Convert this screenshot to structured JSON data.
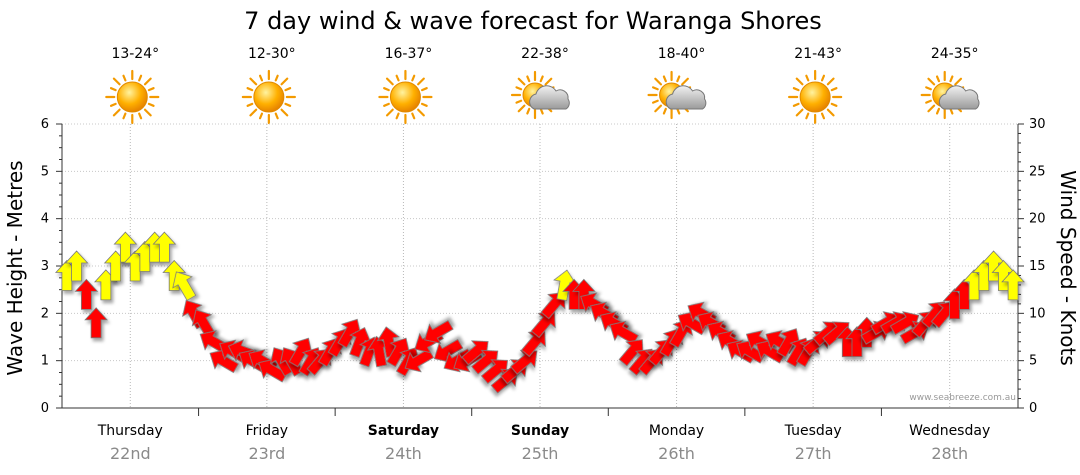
{
  "chart_data": {
    "type": "line",
    "title": "7 day wind & wave forecast for Waranga Shores",
    "ylabel_left": "Wave Height - Metres",
    "ylabel_right": "Wind Speed - Knots",
    "ylim_left": [
      0,
      6
    ],
    "ylim_right": [
      0,
      30
    ],
    "yticks_left": [
      "0",
      "1",
      "2",
      "3",
      "4",
      "5",
      "6"
    ],
    "yticks_right": [
      "0",
      "5",
      "10",
      "15",
      "20",
      "25",
      "30"
    ],
    "watermark": "www.seabreeze.com.au",
    "days": [
      {
        "label": "Thursday",
        "date": "22nd",
        "temp": "13-24°",
        "weather": "sunny-icon",
        "bold": false
      },
      {
        "label": "Friday",
        "date": "23rd",
        "temp": "12-30°",
        "weather": "sunny-icon",
        "bold": false
      },
      {
        "label": "Saturday",
        "date": "24th",
        "temp": "16-37°",
        "weather": "sunny-icon",
        "bold": true
      },
      {
        "label": "Sunday",
        "date": "25th",
        "temp": "22-38°",
        "weather": "partly-cloudy-icon",
        "bold": true
      },
      {
        "label": "Monday",
        "date": "26th",
        "temp": "18-40°",
        "weather": "partly-cloudy-icon",
        "bold": false
      },
      {
        "label": "Tuesday",
        "date": "27th",
        "temp": "21-43°",
        "weather": "sunny-icon",
        "bold": false
      },
      {
        "label": "Wednesday",
        "date": "28th",
        "temp": "24-35°",
        "weather": "partly-cloudy-icon",
        "bold": false
      }
    ],
    "wind_series": {
      "name": "Wind Speed",
      "unit": "knots",
      "hours_per_point": 3,
      "values": [
        14,
        15,
        12,
        9,
        13,
        15,
        17,
        15,
        16,
        17,
        17,
        14,
        13,
        10,
        9,
        7,
        5,
        6,
        6,
        5,
        5,
        4,
        5,
        5,
        6,
        5,
        5,
        6,
        7,
        8,
        7,
        6,
        6,
        7,
        6,
        5,
        5,
        7,
        8,
        6,
        5,
        5,
        6,
        5,
        4,
        3,
        4,
        5,
        7,
        9,
        11,
        13,
        12,
        12,
        11,
        10,
        9,
        8,
        6,
        5,
        5,
        6,
        7,
        8,
        9,
        10,
        9,
        8,
        7,
        6,
        6,
        7,
        6,
        7,
        7,
        6,
        6,
        7,
        8,
        8,
        7,
        7,
        8,
        8,
        9,
        9,
        9,
        8,
        9,
        10,
        10,
        11,
        12,
        13,
        14,
        15,
        14,
        13
      ],
      "direction_deg": [
        0,
        0,
        0,
        0,
        0,
        0,
        0,
        0,
        0,
        0,
        0,
        0,
        330,
        330,
        330,
        300,
        300,
        300,
        290,
        300,
        300,
        300,
        330,
        330,
        30,
        30,
        40,
        30,
        30,
        30,
        20,
        20,
        350,
        350,
        30,
        30,
        240,
        240,
        240,
        240,
        240,
        240,
        50,
        50,
        50,
        50,
        50,
        50,
        40,
        40,
        40,
        10,
        0,
        0,
        300,
        300,
        300,
        300,
        40,
        40,
        40,
        40,
        30,
        30,
        300,
        300,
        300,
        300,
        300,
        300,
        300,
        300,
        300,
        300,
        30,
        30,
        30,
        50,
        50,
        50,
        0,
        0,
        0,
        60,
        60,
        60,
        60,
        60,
        40,
        40,
        40,
        0,
        0,
        0,
        0,
        0,
        0,
        0
      ],
      "colors": {
        "light": "#ffff00",
        "strong": "#ff0000",
        "outline": "#7a7a7a"
      },
      "threshold_knots": 13
    }
  }
}
